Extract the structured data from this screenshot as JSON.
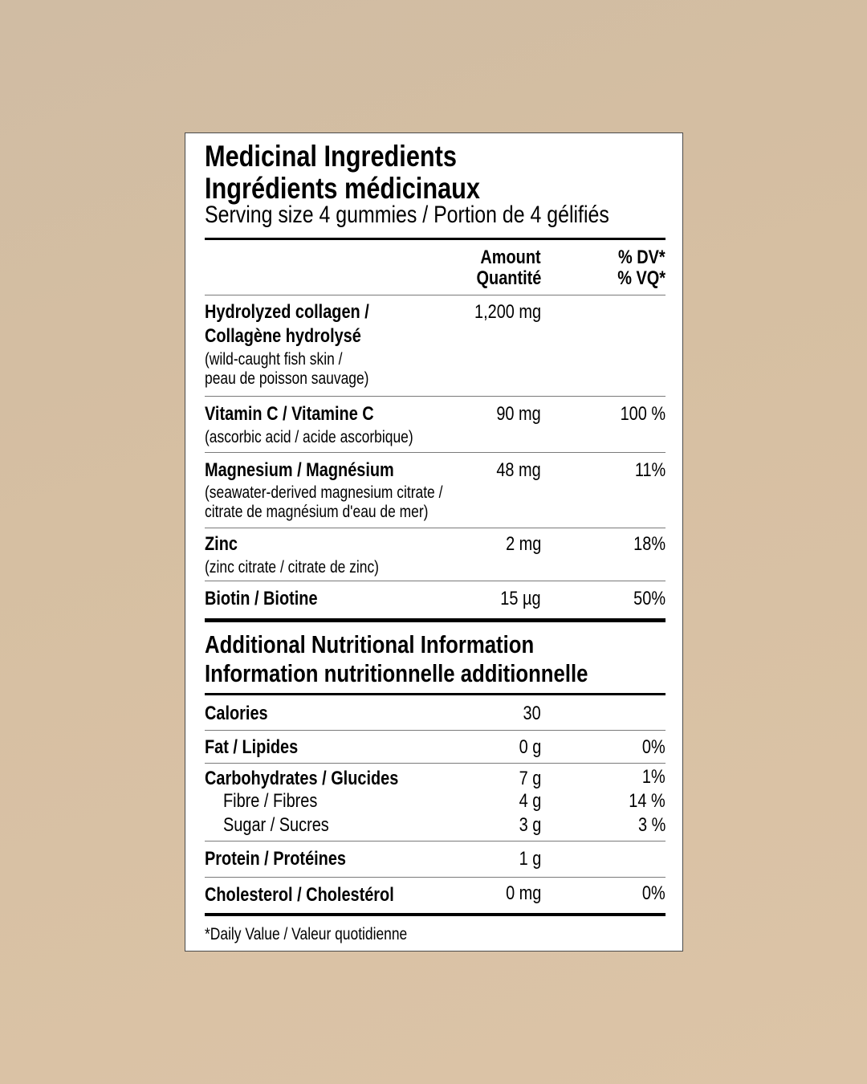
{
  "header": {
    "title_en": "Medicinal Ingredients",
    "title_fr": "Ingrédients médicinaux",
    "serving": "Serving size 4 gummies / Portion de 4 gélifiés"
  },
  "columns": {
    "amount_en": "Amount",
    "amount_fr": "Quantité",
    "dv_en": "% DV*",
    "dv_fr": "% VQ*"
  },
  "medicinal": [
    {
      "name1": "Hydrolyzed collagen /",
      "name2": "Collagène hydrolysé",
      "source1": "(wild-caught fish skin /",
      "source2": "peau de poisson sauvage)",
      "amount": "1,200 mg",
      "dv": ""
    },
    {
      "name1": "Vitamin C / Vitamine C",
      "source1": "(ascorbic acid / acide ascorbique)",
      "amount": "90 mg",
      "dv": "100 %"
    },
    {
      "name1": "Magnesium / Magnésium",
      "source1": "(seawater-derived magnesium citrate /",
      "source2": "citrate de magnésium d'eau de mer)",
      "amount": "48 mg",
      "dv": "11%"
    },
    {
      "name1": "Zinc",
      "source1": "(zinc citrate / citrate de zinc)",
      "amount": "2 mg",
      "dv": "18%"
    },
    {
      "name1": "Biotin / Biotine",
      "amount": "15 µg",
      "dv": "50%"
    }
  ],
  "additional": {
    "title_en": "Additional Nutritional Information",
    "title_fr": "Information nutritionnelle additionnelle",
    "rows": [
      {
        "name": "Calories",
        "amount": "30",
        "dv": ""
      },
      {
        "name": "Fat / Lipides",
        "amount": "0 g",
        "dv": "0%"
      },
      {
        "name": "Carbohydrates / Glucides",
        "amount": "7 g",
        "dv": "1%"
      },
      {
        "name": "Fibre / Fibres",
        "amount": "4 g",
        "dv": "14 %"
      },
      {
        "name": "Sugar / Sucres",
        "amount": "3 g",
        "dv": "3 %"
      },
      {
        "name": "Protein / Protéines",
        "amount": "1 g",
        "dv": ""
      },
      {
        "name": "Cholesterol / Cholestérol",
        "amount": "0 mg",
        "dv": "0%"
      }
    ]
  },
  "footnote": "*Daily Value / Valeur quotidienne"
}
